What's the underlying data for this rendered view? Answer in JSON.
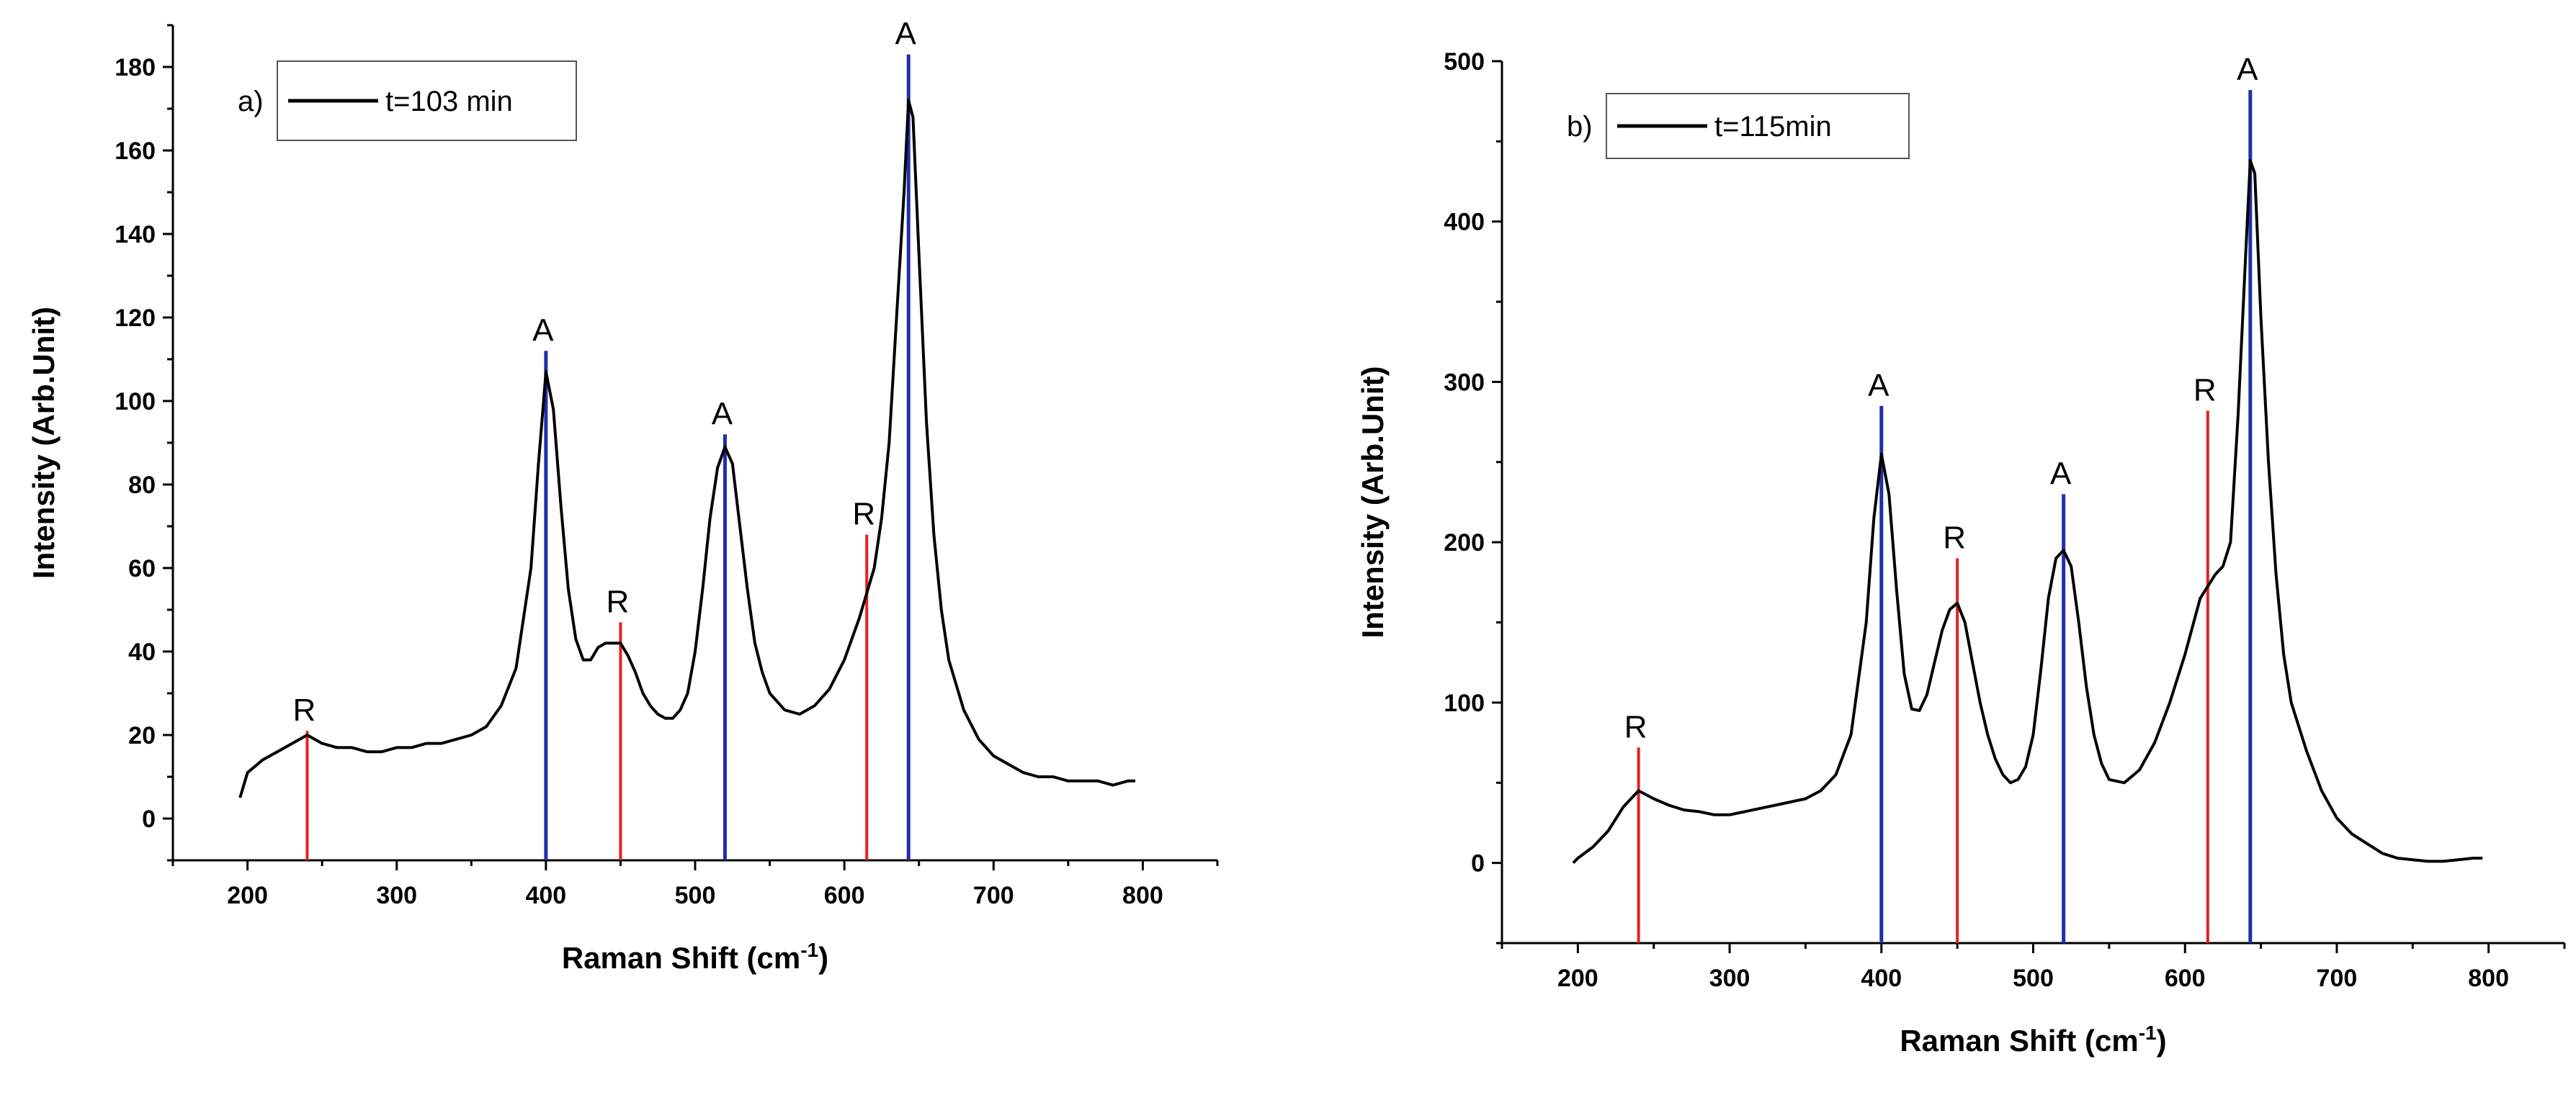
{
  "colors": {
    "spectrum": "#000000",
    "anatase": "#1f2fa8",
    "rutile": "#e8201c"
  },
  "chart_data": [
    {
      "type": "line",
      "panel": "a)",
      "legend": "t=103 min",
      "xlabel": "Raman Shift (cm",
      "xlabel_sup": "-1",
      "xlabel_end": ")",
      "ylabel": "Intensity (Arb.Unit)",
      "xlim": [
        150,
        850
      ],
      "ylim": [
        -10,
        190
      ],
      "xticks": [
        200,
        300,
        400,
        500,
        600,
        700,
        800
      ],
      "yticks": [
        0,
        20,
        40,
        60,
        80,
        100,
        120,
        140,
        160,
        180
      ],
      "ytick_labels": [
        "0",
        "20",
        "40",
        "60",
        "80",
        "100",
        "120",
        "140",
        "160",
        "180"
      ],
      "xtick_labels": [
        "200",
        "300",
        "400",
        "500",
        "600",
        "700",
        "800"
      ],
      "baseline": -10,
      "series": [
        {
          "name": "t=103 min",
          "x": [
            195,
            200,
            210,
            220,
            230,
            240,
            250,
            260,
            270,
            280,
            290,
            300,
            310,
            320,
            330,
            340,
            350,
            360,
            370,
            380,
            390,
            395,
            400,
            405,
            410,
            415,
            420,
            425,
            430,
            435,
            440,
            445,
            450,
            455,
            460,
            465,
            470,
            475,
            480,
            485,
            490,
            495,
            500,
            505,
            510,
            515,
            520,
            525,
            530,
            535,
            540,
            545,
            550,
            560,
            570,
            580,
            590,
            600,
            610,
            620,
            625,
            630,
            635,
            640,
            643,
            646,
            650,
            655,
            660,
            665,
            670,
            680,
            690,
            700,
            710,
            720,
            730,
            740,
            750,
            760,
            770,
            780,
            790,
            795
          ],
          "y": [
            5,
            11,
            14,
            16,
            18,
            20,
            18,
            17,
            17,
            16,
            16,
            17,
            17,
            18,
            18,
            19,
            20,
            22,
            27,
            36,
            60,
            85,
            107,
            98,
            75,
            55,
            43,
            38,
            38,
            41,
            42,
            42,
            42,
            39,
            35,
            30,
            27,
            25,
            24,
            24,
            26,
            30,
            40,
            55,
            72,
            84,
            89,
            85,
            70,
            55,
            42,
            35,
            30,
            26,
            25,
            27,
            31,
            38,
            48,
            60,
            72,
            90,
            120,
            150,
            172,
            168,
            135,
            95,
            68,
            50,
            38,
            26,
            19,
            15,
            13,
            11,
            10,
            10,
            9,
            9,
            9,
            8,
            9,
            9
          ]
        }
      ],
      "markers": [
        {
          "type": "R",
          "x": 240,
          "y": 21
        },
        {
          "type": "A",
          "x": 400,
          "y": 112
        },
        {
          "type": "R",
          "x": 450,
          "y": 47
        },
        {
          "type": "A",
          "x": 520,
          "y": 92
        },
        {
          "type": "R",
          "x": 615,
          "y": 68
        },
        {
          "type": "A",
          "x": 643,
          "y": 183
        }
      ]
    },
    {
      "type": "line",
      "panel": "b)",
      "legend": "t=115min",
      "xlabel": "Raman Shift (cm",
      "xlabel_sup": "-1",
      "xlabel_end": ")",
      "ylabel": "Intensity (Arb.Unit)",
      "xlim": [
        150,
        850
      ],
      "ylim": [
        -50,
        500
      ],
      "xticks": [
        200,
        300,
        400,
        500,
        600,
        700,
        800
      ],
      "yticks": [
        0,
        100,
        200,
        300,
        400,
        500
      ],
      "ytick_labels": [
        "0",
        "100",
        "200",
        "300",
        "400",
        "500"
      ],
      "xtick_labels": [
        "200",
        "300",
        "400",
        "500",
        "600",
        "700",
        "800"
      ],
      "baseline": -50,
      "series": [
        {
          "name": "t=115min",
          "x": [
            197,
            200,
            210,
            220,
            230,
            240,
            250,
            260,
            270,
            280,
            290,
            300,
            310,
            320,
            330,
            340,
            350,
            360,
            370,
            380,
            390,
            395,
            400,
            405,
            410,
            415,
            420,
            425,
            430,
            435,
            440,
            445,
            450,
            455,
            460,
            465,
            470,
            475,
            480,
            485,
            490,
            495,
            500,
            505,
            510,
            515,
            520,
            525,
            530,
            535,
            540,
            545,
            550,
            560,
            570,
            580,
            590,
            600,
            610,
            620,
            625,
            630,
            635,
            640,
            643,
            646,
            650,
            655,
            660,
            665,
            670,
            680,
            690,
            700,
            710,
            720,
            730,
            740,
            750,
            760,
            770,
            780,
            790,
            796
          ],
          "y": [
            0,
            3,
            10,
            20,
            35,
            45,
            40,
            36,
            33,
            32,
            30,
            30,
            32,
            34,
            36,
            38,
            40,
            45,
            55,
            80,
            150,
            215,
            255,
            230,
            170,
            118,
            96,
            95,
            105,
            125,
            145,
            158,
            162,
            150,
            125,
            100,
            80,
            65,
            55,
            50,
            52,
            60,
            80,
            120,
            165,
            190,
            195,
            185,
            150,
            110,
            80,
            62,
            52,
            50,
            58,
            75,
            100,
            130,
            165,
            180,
            185,
            200,
            280,
            380,
            438,
            430,
            340,
            250,
            180,
            130,
            100,
            70,
            45,
            28,
            18,
            12,
            6,
            3,
            2,
            1,
            1,
            2,
            3,
            3
          ]
        }
      ],
      "markers": [
        {
          "type": "R",
          "x": 240,
          "y": 72
        },
        {
          "type": "A",
          "x": 400,
          "y": 285
        },
        {
          "type": "R",
          "x": 450,
          "y": 190
        },
        {
          "type": "A",
          "x": 520,
          "y": 230
        },
        {
          "type": "R",
          "x": 615,
          "y": 282
        },
        {
          "type": "A",
          "x": 643,
          "y": 482
        }
      ]
    }
  ]
}
